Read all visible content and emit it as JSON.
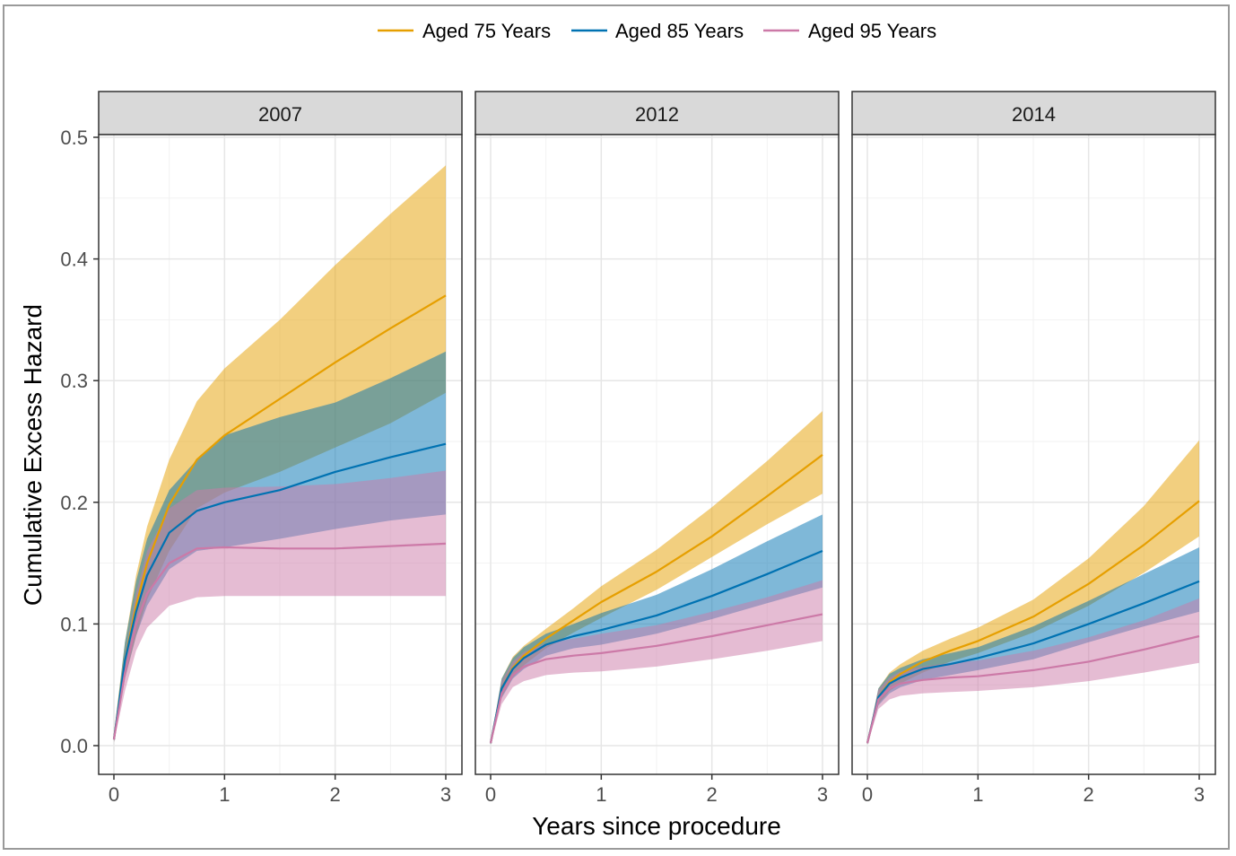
{
  "chart_data": {
    "type": "line",
    "xlabel": "Years since procedure",
    "ylabel": "Cumulative Excess Hazard",
    "xlim": [
      0,
      3
    ],
    "ylim": [
      0,
      0.5
    ],
    "xticks": [
      0,
      1,
      2,
      3
    ],
    "yticks": [
      0.0,
      0.1,
      0.2,
      0.3,
      0.4,
      0.5
    ],
    "ytick_labels": [
      "0.0",
      "0.1",
      "0.2",
      "0.3",
      "0.4",
      "0.5"
    ],
    "grid": true,
    "legend_position": "top",
    "legend": [
      {
        "name": "Aged 75 Years",
        "color": "#E69F00"
      },
      {
        "name": "Aged 85 Years",
        "color": "#0072B2"
      },
      {
        "name": "Aged 95 Years",
        "color": "#CC79A7"
      }
    ],
    "x": [
      0,
      0.1,
      0.2,
      0.3,
      0.5,
      0.75,
      1.0,
      1.5,
      2.0,
      2.5,
      3.0
    ],
    "panels": [
      {
        "label": "2007",
        "series": [
          {
            "name": "Aged 75 Years",
            "values": [
              0.005,
              0.07,
              0.115,
              0.15,
              0.198,
              0.235,
              0.255,
              0.285,
              0.315,
              0.343,
              0.37
            ],
            "lower": [
              0.003,
              0.055,
              0.09,
              0.12,
              0.16,
              0.195,
              0.208,
              0.225,
              0.245,
              0.265,
              0.29
            ],
            "upper": [
              0.01,
              0.085,
              0.14,
              0.18,
              0.235,
              0.283,
              0.31,
              0.35,
              0.395,
              0.437,
              0.477
            ]
          },
          {
            "name": "Aged 85 Years",
            "values": [
              0.005,
              0.07,
              0.11,
              0.14,
              0.175,
              0.193,
              0.2,
              0.21,
              0.225,
              0.237,
              0.248
            ],
            "lower": [
              0.003,
              0.055,
              0.09,
              0.115,
              0.145,
              0.16,
              0.163,
              0.17,
              0.178,
              0.185,
              0.19
            ],
            "upper": [
              0.008,
              0.085,
              0.135,
              0.17,
              0.21,
              0.235,
              0.255,
              0.27,
              0.282,
              0.302,
              0.324
            ]
          },
          {
            "name": "Aged 95 Years",
            "values": [
              0.005,
              0.06,
              0.1,
              0.125,
              0.15,
              0.162,
              0.163,
              0.162,
              0.162,
              0.164,
              0.166
            ],
            "lower": [
              0.003,
              0.045,
              0.078,
              0.097,
              0.115,
              0.122,
              0.123,
              0.123,
              0.123,
              0.123,
              0.123
            ],
            "upper": [
              0.008,
              0.075,
              0.125,
              0.16,
              0.195,
              0.21,
              0.212,
              0.213,
              0.215,
              0.22,
              0.226
            ]
          }
        ]
      },
      {
        "label": "2012",
        "series": [
          {
            "name": "Aged 75 Years",
            "values": [
              0.002,
              0.047,
              0.064,
              0.074,
              0.088,
              0.103,
              0.118,
              0.143,
              0.172,
              0.205,
              0.239
            ],
            "lower": [
              0.001,
              0.04,
              0.056,
              0.066,
              0.08,
              0.093,
              0.105,
              0.128,
              0.155,
              0.182,
              0.207
            ],
            "upper": [
              0.003,
              0.055,
              0.073,
              0.082,
              0.096,
              0.113,
              0.131,
              0.161,
              0.196,
              0.234,
              0.275
            ]
          },
          {
            "name": "Aged 85 Years",
            "values": [
              0.002,
              0.047,
              0.063,
              0.072,
              0.083,
              0.09,
              0.095,
              0.107,
              0.123,
              0.141,
              0.16
            ],
            "lower": [
              0.001,
              0.039,
              0.055,
              0.063,
              0.074,
              0.08,
              0.083,
              0.092,
              0.104,
              0.117,
              0.13
            ],
            "upper": [
              0.003,
              0.055,
              0.072,
              0.081,
              0.092,
              0.1,
              0.109,
              0.124,
              0.145,
              0.168,
              0.19
            ]
          },
          {
            "name": "Aged 95 Years",
            "values": [
              0.002,
              0.043,
              0.058,
              0.065,
              0.071,
              0.074,
              0.076,
              0.082,
              0.09,
              0.099,
              0.108
            ],
            "lower": [
              0.001,
              0.034,
              0.048,
              0.053,
              0.058,
              0.06,
              0.061,
              0.065,
              0.071,
              0.078,
              0.086
            ],
            "upper": [
              0.003,
              0.053,
              0.069,
              0.077,
              0.084,
              0.088,
              0.092,
              0.099,
              0.11,
              0.122,
              0.136
            ]
          }
        ]
      },
      {
        "label": "2014",
        "series": [
          {
            "name": "Aged 75 Years",
            "values": [
              0.002,
              0.04,
              0.052,
              0.059,
              0.069,
              0.078,
              0.086,
              0.106,
              0.133,
              0.165,
              0.201
            ],
            "lower": [
              0.001,
              0.034,
              0.045,
              0.051,
              0.06,
              0.069,
              0.076,
              0.093,
              0.115,
              0.142,
              0.172
            ],
            "upper": [
              0.003,
              0.047,
              0.06,
              0.067,
              0.078,
              0.088,
              0.097,
              0.12,
              0.154,
              0.197,
              0.251
            ]
          },
          {
            "name": "Aged 85 Years",
            "values": [
              0.002,
              0.04,
              0.051,
              0.056,
              0.063,
              0.067,
              0.072,
              0.084,
              0.1,
              0.117,
              0.135
            ],
            "lower": [
              0.001,
              0.033,
              0.043,
              0.048,
              0.054,
              0.058,
              0.062,
              0.071,
              0.085,
              0.098,
              0.11
            ],
            "upper": [
              0.003,
              0.047,
              0.059,
              0.064,
              0.071,
              0.076,
              0.081,
              0.098,
              0.119,
              0.141,
              0.163
            ]
          },
          {
            "name": "Aged 95 Years",
            "values": [
              0.002,
              0.038,
              0.047,
              0.051,
              0.054,
              0.056,
              0.057,
              0.062,
              0.069,
              0.079,
              0.09
            ],
            "lower": [
              0.001,
              0.03,
              0.038,
              0.041,
              0.043,
              0.044,
              0.045,
              0.048,
              0.053,
              0.06,
              0.068
            ],
            "upper": [
              0.003,
              0.046,
              0.056,
              0.061,
              0.065,
              0.068,
              0.07,
              0.078,
              0.089,
              0.103,
              0.121
            ]
          }
        ]
      }
    ]
  }
}
